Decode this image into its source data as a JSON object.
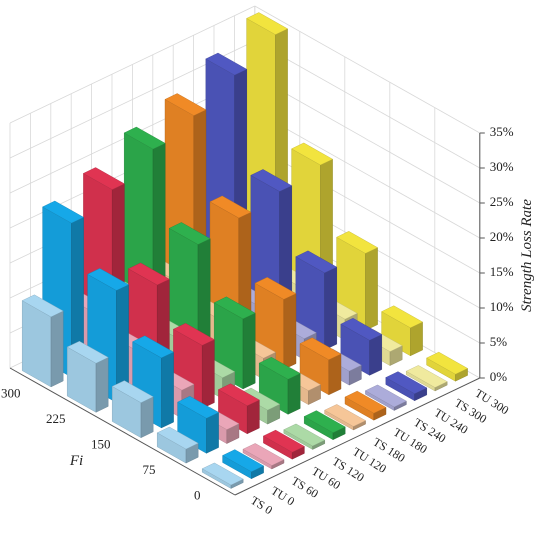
{
  "chart_data": {
    "type": "bar3d",
    "x_label": "Fi",
    "z_label": "Strength Loss Rate",
    "categories": [
      "0",
      "75",
      "150",
      "225",
      "300"
    ],
    "series": [
      {
        "name": "TS 0",
        "color": "#a8d6f0",
        "values": [
          0.5,
          2,
          5,
          7,
          10
        ]
      },
      {
        "name": "TU 0",
        "color": "#16a8e8",
        "values": [
          1,
          5,
          10,
          16,
          22
        ]
      },
      {
        "name": "TS 60",
        "color": "#eaa6b8",
        "values": [
          0.5,
          2,
          4,
          6,
          8
        ]
      },
      {
        "name": "TU 60",
        "color": "#e03452",
        "values": [
          1,
          4,
          9,
          14,
          24
        ]
      },
      {
        "name": "TS 120",
        "color": "#acdaa6",
        "values": [
          0.5,
          2,
          3,
          5,
          7
        ]
      },
      {
        "name": "TU 120",
        "color": "#2eb04e",
        "values": [
          1,
          5,
          10,
          17,
          27
        ]
      },
      {
        "name": "TS 180",
        "color": "#f6c698",
        "values": [
          0.5,
          2,
          3,
          5,
          7
        ]
      },
      {
        "name": "TU 180",
        "color": "#f08a26",
        "values": [
          1,
          5,
          10,
          18,
          29
        ]
      },
      {
        "name": "TS 240",
        "color": "#acacda",
        "values": [
          0.5,
          2,
          3,
          4,
          6
        ]
      },
      {
        "name": "TU 240",
        "color": "#5058c2",
        "values": [
          1,
          5,
          11,
          19,
          32
        ]
      },
      {
        "name": "TS 300",
        "color": "#f0ea9e",
        "values": [
          0.5,
          2,
          3,
          4,
          6
        ]
      },
      {
        "name": "TU 300",
        "color": "#f2e43e",
        "values": [
          1,
          4,
          11,
          20,
          35
        ]
      }
    ],
    "zlim": [
      0,
      35
    ],
    "zticks": [
      {
        "value": 0,
        "label": "0%"
      },
      {
        "value": 5,
        "label": "5%"
      },
      {
        "value": 10,
        "label": "10%"
      },
      {
        "value": 15,
        "label": "15%"
      },
      {
        "value": 20,
        "label": "20%"
      },
      {
        "value": 25,
        "label": "25%"
      },
      {
        "value": 30,
        "label": "30%"
      },
      {
        "value": 35,
        "label": "35%"
      }
    ],
    "grid": true
  }
}
